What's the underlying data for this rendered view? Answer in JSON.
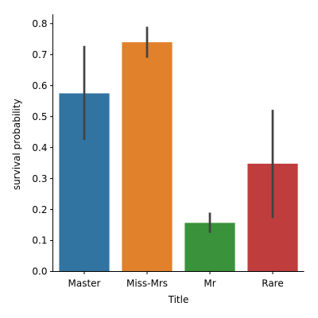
{
  "chart_data": {
    "type": "bar",
    "title": "",
    "xlabel": "Title",
    "ylabel": "survival probability",
    "categories": [
      "Master",
      "Miss-Mrs",
      "Mr",
      "Rare"
    ],
    "values": [
      0.575,
      0.74,
      0.157,
      0.348
    ],
    "error_bars": [
      [
        0.425,
        0.728
      ],
      [
        0.69,
        0.79
      ],
      [
        0.125,
        0.19
      ],
      [
        0.172,
        0.522
      ]
    ],
    "colors": [
      "#3274a1",
      "#e1812c",
      "#3a923a",
      "#c03d3e"
    ],
    "error_color": "#424242",
    "ylim": [
      0,
      0.825
    ],
    "yticks": [
      0.0,
      0.1,
      0.2,
      0.3,
      0.4,
      0.5,
      0.6,
      0.7,
      0.8
    ],
    "ytick_labels": [
      "0.0",
      "0.1",
      "0.2",
      "0.3",
      "0.4",
      "0.5",
      "0.6",
      "0.7",
      "0.8"
    ],
    "grid": false,
    "legend": "none"
  }
}
